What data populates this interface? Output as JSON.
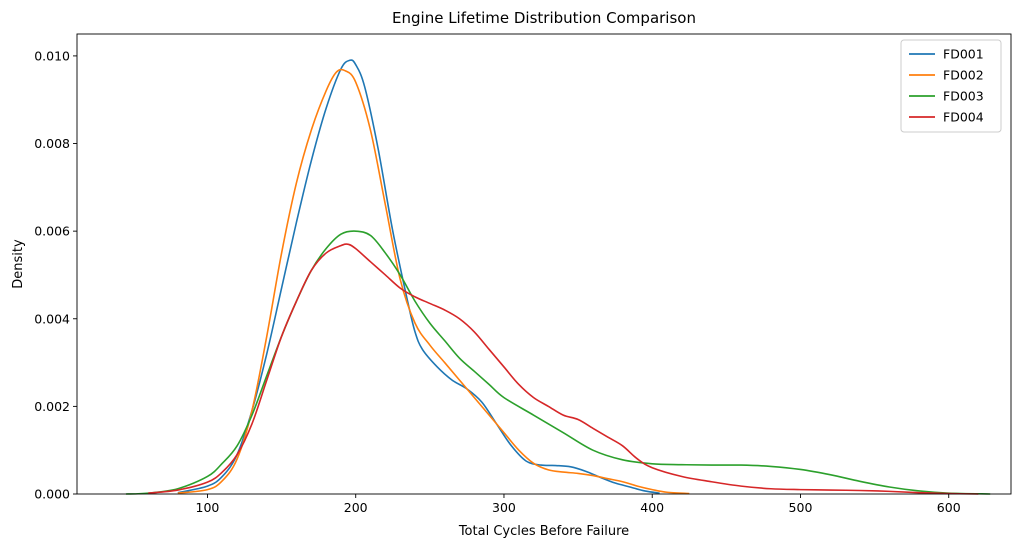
{
  "chart_data": {
    "type": "line",
    "title": "Engine Lifetime Distribution Comparison",
    "xlabel": "Total Cycles Before Failure",
    "ylabel": "Density",
    "xlim": [
      12,
      642
    ],
    "ylim": [
      0,
      0.0105
    ],
    "xticks": [
      100,
      200,
      300,
      400,
      500,
      600
    ],
    "xtick_labels": [
      "100",
      "200",
      "300",
      "400",
      "500",
      "600"
    ],
    "yticks": [
      0,
      0.002,
      0.004,
      0.006,
      0.008,
      0.01
    ],
    "ytick_labels": [
      "0.000",
      "0.002",
      "0.004",
      "0.006",
      "0.008",
      "0.010"
    ],
    "grid": false,
    "legend_position": "top-right",
    "series": [
      {
        "name": "FD001",
        "color": "#1f77b4",
        "points": [
          [
            80,
            3e-05
          ],
          [
            100,
            0.00018
          ],
          [
            110,
            0.0004
          ],
          [
            120,
            0.0009
          ],
          [
            130,
            0.0019
          ],
          [
            140,
            0.0032
          ],
          [
            150,
            0.0047
          ],
          [
            160,
            0.0062
          ],
          [
            170,
            0.0076
          ],
          [
            180,
            0.0088
          ],
          [
            190,
            0.0097
          ],
          [
            196,
            0.0099
          ],
          [
            200,
            0.0098
          ],
          [
            206,
            0.0093
          ],
          [
            215,
            0.0079
          ],
          [
            225,
            0.006
          ],
          [
            235,
            0.0044
          ],
          [
            240,
            0.0037
          ],
          [
            245,
            0.0033
          ],
          [
            255,
            0.0029
          ],
          [
            265,
            0.0026
          ],
          [
            275,
            0.0024
          ],
          [
            285,
            0.0021
          ],
          [
            295,
            0.0016
          ],
          [
            305,
            0.0011
          ],
          [
            315,
            0.00075
          ],
          [
            325,
            0.00066
          ],
          [
            335,
            0.00065
          ],
          [
            345,
            0.00062
          ],
          [
            355,
            0.00052
          ],
          [
            365,
            0.00038
          ],
          [
            375,
            0.00025
          ],
          [
            385,
            0.00016
          ],
          [
            395,
            7e-05
          ],
          [
            405,
            2e-05
          ]
        ]
      },
      {
        "name": "FD002",
        "color": "#ff7f0e",
        "points": [
          [
            80,
            2e-05
          ],
          [
            100,
            0.0001
          ],
          [
            110,
            0.0003
          ],
          [
            120,
            0.0008
          ],
          [
            130,
            0.0019
          ],
          [
            140,
            0.0036
          ],
          [
            150,
            0.0055
          ],
          [
            160,
            0.0071
          ],
          [
            170,
            0.0083
          ],
          [
            180,
            0.0092
          ],
          [
            187,
            0.00963
          ],
          [
            193,
            0.00966
          ],
          [
            200,
            0.0094
          ],
          [
            210,
            0.0083
          ],
          [
            220,
            0.0066
          ],
          [
            230,
            0.0049
          ],
          [
            240,
            0.0039
          ],
          [
            250,
            0.0034
          ],
          [
            260,
            0.003
          ],
          [
            270,
            0.0026
          ],
          [
            280,
            0.0022
          ],
          [
            290,
            0.0018
          ],
          [
            300,
            0.0014
          ],
          [
            310,
            0.001
          ],
          [
            320,
            0.0007
          ],
          [
            330,
            0.00055
          ],
          [
            340,
            0.0005
          ],
          [
            350,
            0.00047
          ],
          [
            360,
            0.00042
          ],
          [
            370,
            0.00035
          ],
          [
            380,
            0.00028
          ],
          [
            390,
            0.00018
          ],
          [
            400,
            0.0001
          ],
          [
            410,
            4e-05
          ],
          [
            425,
            1e-05
          ]
        ]
      },
      {
        "name": "FD003",
        "color": "#2ca02c",
        "points": [
          [
            45,
            0.0
          ],
          [
            60,
            2e-05
          ],
          [
            80,
            0.00012
          ],
          [
            100,
            0.0004
          ],
          [
            110,
            0.0007
          ],
          [
            120,
            0.0011
          ],
          [
            130,
            0.0018
          ],
          [
            140,
            0.0027
          ],
          [
            150,
            0.0036
          ],
          [
            160,
            0.0044
          ],
          [
            170,
            0.0051
          ],
          [
            180,
            0.0056
          ],
          [
            190,
            0.00593
          ],
          [
            200,
            0.006
          ],
          [
            210,
            0.0059
          ],
          [
            220,
            0.0055
          ],
          [
            230,
            0.005
          ],
          [
            240,
            0.0044
          ],
          [
            250,
            0.0039
          ],
          [
            260,
            0.0035
          ],
          [
            270,
            0.0031
          ],
          [
            280,
            0.0028
          ],
          [
            290,
            0.0025
          ],
          [
            300,
            0.0022
          ],
          [
            320,
            0.0018
          ],
          [
            340,
            0.0014
          ],
          [
            360,
            0.001
          ],
          [
            380,
            0.00078
          ],
          [
            400,
            0.00069
          ],
          [
            420,
            0.00067
          ],
          [
            440,
            0.00066
          ],
          [
            460,
            0.00066
          ],
          [
            480,
            0.00063
          ],
          [
            500,
            0.00056
          ],
          [
            520,
            0.00044
          ],
          [
            540,
            0.00029
          ],
          [
            560,
            0.00016
          ],
          [
            580,
            7e-05
          ],
          [
            600,
            2e-05
          ],
          [
            628,
            0.0
          ]
        ]
      },
      {
        "name": "FD004",
        "color": "#d62728",
        "points": [
          [
            60,
            2e-05
          ],
          [
            80,
            9e-05
          ],
          [
            100,
            0.00027
          ],
          [
            110,
            0.0005
          ],
          [
            120,
            0.0009
          ],
          [
            130,
            0.0016
          ],
          [
            140,
            0.0026
          ],
          [
            150,
            0.0036
          ],
          [
            160,
            0.0044
          ],
          [
            170,
            0.0051
          ],
          [
            180,
            0.0055
          ],
          [
            190,
            0.00567
          ],
          [
            195,
            0.0057
          ],
          [
            200,
            0.0056
          ],
          [
            210,
            0.0053
          ],
          [
            220,
            0.005
          ],
          [
            230,
            0.0047
          ],
          [
            240,
            0.0045
          ],
          [
            250,
            0.00435
          ],
          [
            260,
            0.0042
          ],
          [
            270,
            0.004
          ],
          [
            280,
            0.0037
          ],
          [
            290,
            0.0033
          ],
          [
            300,
            0.0029
          ],
          [
            310,
            0.0025
          ],
          [
            320,
            0.0022
          ],
          [
            330,
            0.002
          ],
          [
            340,
            0.0018
          ],
          [
            350,
            0.0017
          ],
          [
            360,
            0.0015
          ],
          [
            370,
            0.0013
          ],
          [
            380,
            0.0011
          ],
          [
            390,
            0.0008
          ],
          [
            400,
            0.0006
          ],
          [
            420,
            0.0004
          ],
          [
            440,
            0.00028
          ],
          [
            460,
            0.00018
          ],
          [
            480,
            0.00012
          ],
          [
            500,
            0.0001
          ],
          [
            520,
            9e-05
          ],
          [
            540,
            8e-05
          ],
          [
            560,
            6e-05
          ],
          [
            580,
            3e-05
          ],
          [
            600,
            1e-05
          ],
          [
            620,
            0.0
          ]
        ]
      }
    ]
  }
}
